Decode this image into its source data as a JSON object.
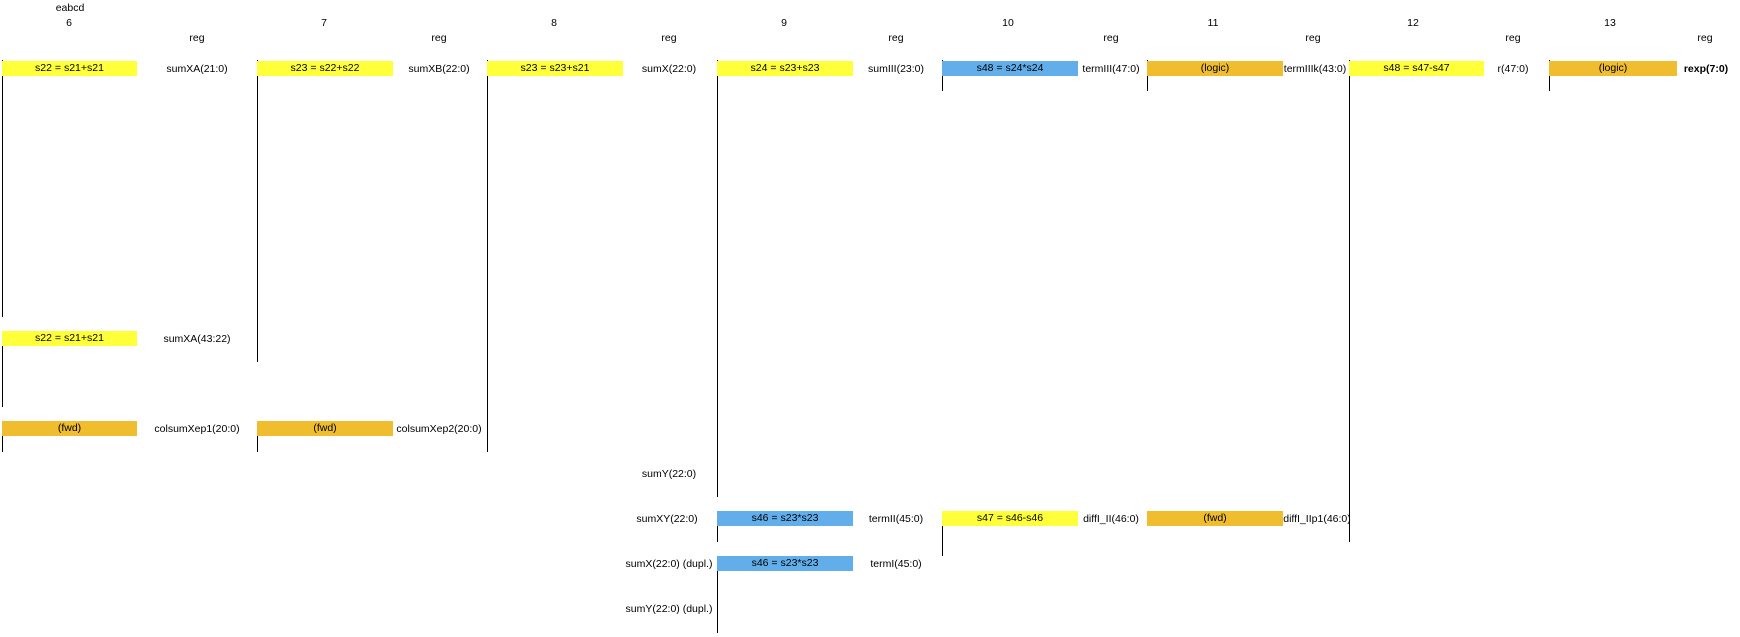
{
  "sheet_label": "eabcd",
  "stages": [
    {
      "number": "6"
    },
    {
      "number": "7"
    },
    {
      "number": "8"
    },
    {
      "number": "9"
    },
    {
      "number": "10"
    },
    {
      "number": "11"
    },
    {
      "number": "12"
    },
    {
      "number": "13"
    }
  ],
  "reg_label": "reg",
  "ops": [
    {
      "text": "s22 = s21+s21",
      "color": "yellow"
    },
    {
      "text": "s23 = s22+s22",
      "color": "yellow"
    },
    {
      "text": "s23 = s23+s21",
      "color": "yellow"
    },
    {
      "text": "s24 = s23+s23",
      "color": "yellow"
    },
    {
      "text": "s48 = s24*s24",
      "color": "blue"
    },
    {
      "text": "(logic)",
      "color": "orange"
    },
    {
      "text": "s48 = s47-s47",
      "color": "yellow"
    },
    {
      "text": "(logic)",
      "color": "orange"
    },
    {
      "text": "s22 = s21+s21",
      "color": "yellow"
    },
    {
      "text": "(fwd)",
      "color": "orange"
    },
    {
      "text": "(fwd)",
      "color": "orange"
    },
    {
      "text": "s46 = s23*s23",
      "color": "blue"
    },
    {
      "text": "s47 = s46-s46",
      "color": "yellow"
    },
    {
      "text": "(fwd)",
      "color": "orange"
    },
    {
      "text": "s46 = s23*s23",
      "color": "blue"
    }
  ],
  "signals": [
    "sumXA(21:0)",
    "sumXB(22:0)",
    "sumX(22:0)",
    "sumIII(23:0)",
    "termIII(47:0)",
    "termIIIk(43:0)",
    "r(47:0)",
    "rexp(7:0)",
    "sumXA(43:22)",
    "colsumXep1(20:0)",
    "colsumXep2(20:0)",
    "sumY(22:0)",
    "sumXY(22:0)",
    "termII(45:0)",
    "diffI_II(46:0)",
    "diffI_IIp1(46:0)",
    "sumX(22:0) (dupl.)",
    "termI(45:0)",
    "sumY(22:0) (dupl.)"
  ],
  "colors": {
    "yellow": "#ffff3a",
    "orange": "#f0bd2e",
    "blue": "#61aeeb"
  }
}
